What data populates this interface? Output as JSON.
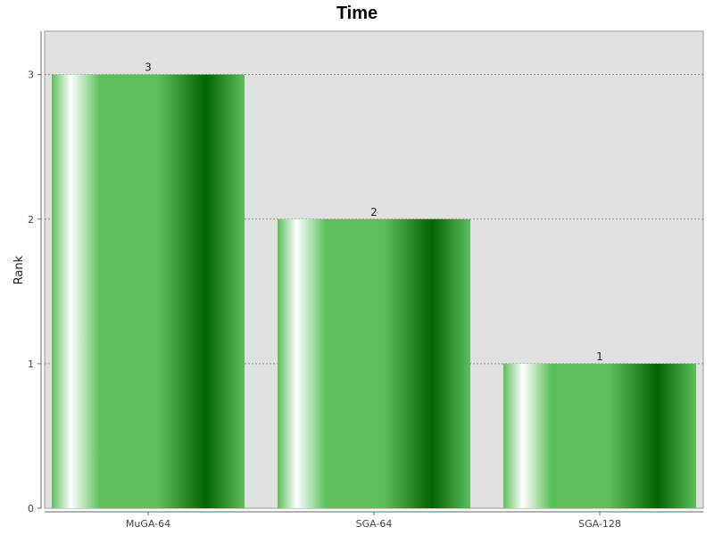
{
  "chart_data": {
    "type": "bar",
    "title": "Time",
    "xlabel": "",
    "ylabel": "Rank",
    "categories": [
      "MuGA-64",
      "SGA-64",
      "SGA-128"
    ],
    "values": [
      3,
      2,
      1
    ],
    "data_labels": [
      "3",
      "2",
      "1"
    ],
    "ylim": [
      0,
      3.3
    ],
    "yticks": [
      0,
      1,
      2,
      3
    ],
    "ytick_labels": [
      "0",
      "1",
      "2",
      "3"
    ],
    "grid": true,
    "legend": "none",
    "colors": {
      "plot_background": "#e0e0e0",
      "bar_dark": "#006400",
      "bar_mid": "#5cbf5c",
      "bar_highlight": "#ffffff",
      "gridline": "#8c8c8c"
    }
  }
}
